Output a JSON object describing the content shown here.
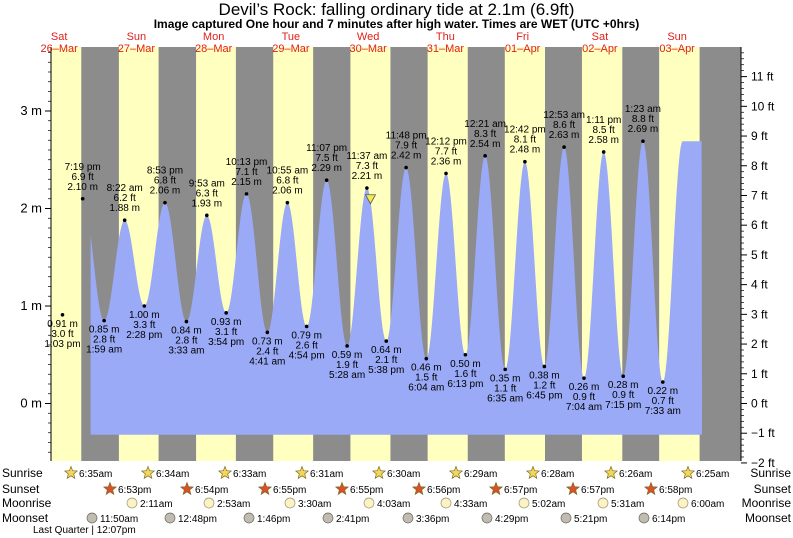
{
  "title": "Devil’s Rock: falling  ordinary tide at 2.1m (6.9ft)",
  "subtitle": "Image captured One hour and 7 minutes after high water. Times are WET (UTC +0hrs)",
  "colors": {
    "night": "#8c8c8c",
    "day": "#ffffc0",
    "water": "#9aaaf6",
    "day_label": "#e0201a",
    "sunrise_star": "#f3d75a",
    "sunset_star": "#d9502a",
    "moonrise": "#fbf3c4",
    "moonset": "#c0bcb2"
  },
  "chart_data": {
    "type": "area",
    "title": "Devil’s Rock: falling  ordinary tide at 2.1m (6.9ft)",
    "ylim_m": [
      -0.5,
      3.6
    ],
    "y_ticks_m": [
      {
        "v": 0,
        "label": "0 m"
      },
      {
        "v": 1,
        "label": "1 m"
      },
      {
        "v": 2,
        "label": "2 m"
      },
      {
        "v": 3,
        "label": "3 m"
      }
    ],
    "y_ticks_ft": [
      {
        "v": -2,
        "label": "−2 ft"
      },
      {
        "v": -1,
        "label": "−1 ft"
      },
      {
        "v": 0,
        "label": "0 ft"
      },
      {
        "v": 1,
        "label": "1 ft"
      },
      {
        "v": 2,
        "label": "2 ft"
      },
      {
        "v": 3,
        "label": "3 ft"
      },
      {
        "v": 4,
        "label": "4 ft"
      },
      {
        "v": 5,
        "label": "5 ft"
      },
      {
        "v": 6,
        "label": "6 ft"
      },
      {
        "v": 7,
        "label": "7 ft"
      },
      {
        "v": 8,
        "label": "8 ft"
      },
      {
        "v": 9,
        "label": "9 ft"
      },
      {
        "v": 10,
        "label": "10 ft"
      },
      {
        "v": 11,
        "label": "11 ft"
      }
    ],
    "days": [
      {
        "name": "Sat",
        "date": "26–Mar"
      },
      {
        "name": "Sun",
        "date": "27–Mar"
      },
      {
        "name": "Mon",
        "date": "28–Mar"
      },
      {
        "name": "Tue",
        "date": "29–Mar"
      },
      {
        "name": "Wed",
        "date": "30–Mar"
      },
      {
        "name": "Thu",
        "date": "31–Mar"
      },
      {
        "name": "Fri",
        "date": "01–Apr"
      },
      {
        "name": "Sat",
        "date": "02–Apr"
      },
      {
        "name": "Sun",
        "date": "03–Apr"
      }
    ],
    "daylight": [
      {
        "day": 0,
        "sunrise": "06:35",
        "sunset": "18:53"
      },
      {
        "day": 1,
        "sunrise": "06:34",
        "sunset": "18:54"
      },
      {
        "day": 2,
        "sunrise": "06:33",
        "sunset": "18:55"
      },
      {
        "day": 3,
        "sunrise": "06:31",
        "sunset": "18:55"
      },
      {
        "day": 4,
        "sunrise": "06:30",
        "sunset": "18:56"
      },
      {
        "day": 5,
        "sunrise": "06:29",
        "sunset": "18:57"
      },
      {
        "day": 6,
        "sunrise": "06:28",
        "sunset": "18:57"
      },
      {
        "day": 7,
        "sunrise": "06:26",
        "sunset": "18:58"
      },
      {
        "day": 8,
        "sunrise": "06:25",
        "sunset": "18:59"
      }
    ],
    "tides": [
      {
        "day": 0,
        "time": "13:03",
        "m": 0.91,
        "lines": [
          "0.91 m",
          "3.0 ft",
          "1:03 pm"
        ],
        "type": "low"
      },
      {
        "day": 0,
        "time": "19:19",
        "m": 2.1,
        "lines": [
          "7:19 pm",
          "6.9 ft",
          "2.10 m"
        ],
        "type": "high"
      },
      {
        "day": 1,
        "time": "01:59",
        "m": 0.85,
        "lines": [
          "0.85 m",
          "2.8 ft",
          "1:59 am"
        ],
        "type": "low"
      },
      {
        "day": 1,
        "time": "08:22",
        "m": 1.88,
        "lines": [
          "8:22 am",
          "6.2 ft",
          "1.88 m"
        ],
        "type": "high"
      },
      {
        "day": 1,
        "time": "14:28",
        "m": 1.0,
        "lines": [
          "1.00 m",
          "3.3 ft",
          "2:28 pm"
        ],
        "type": "low"
      },
      {
        "day": 1,
        "time": "20:53",
        "m": 2.06,
        "lines": [
          "8:53 pm",
          "6.8 ft",
          "2.06 m"
        ],
        "type": "high"
      },
      {
        "day": 2,
        "time": "03:33",
        "m": 0.84,
        "lines": [
          "0.84 m",
          "2.8 ft",
          "3:33 am"
        ],
        "type": "low"
      },
      {
        "day": 2,
        "time": "09:53",
        "m": 1.93,
        "lines": [
          "9:53 am",
          "6.3 ft",
          "1.93 m"
        ],
        "type": "high"
      },
      {
        "day": 2,
        "time": "15:54",
        "m": 0.93,
        "lines": [
          "0.93 m",
          "3.1 ft",
          "3:54 pm"
        ],
        "type": "low"
      },
      {
        "day": 2,
        "time": "22:13",
        "m": 2.15,
        "lines": [
          "10:13 pm",
          "7.1 ft",
          "2.15 m"
        ],
        "type": "high"
      },
      {
        "day": 3,
        "time": "04:41",
        "m": 0.73,
        "lines": [
          "0.73 m",
          "2.4 ft",
          "4:41 am"
        ],
        "type": "low"
      },
      {
        "day": 3,
        "time": "10:55",
        "m": 2.06,
        "lines": [
          "10:55 am",
          "6.8 ft",
          "2.06 m"
        ],
        "type": "high"
      },
      {
        "day": 3,
        "time": "16:54",
        "m": 0.79,
        "lines": [
          "0.79 m",
          "2.6 ft",
          "4:54 pm"
        ],
        "type": "low"
      },
      {
        "day": 3,
        "time": "23:07",
        "m": 2.29,
        "lines": [
          "11:07 pm",
          "7.5 ft",
          "2.29 m"
        ],
        "type": "high"
      },
      {
        "day": 4,
        "time": "05:28",
        "m": 0.59,
        "lines": [
          "0.59 m",
          "1.9 ft",
          "5:28 am"
        ],
        "type": "low"
      },
      {
        "day": 4,
        "time": "11:37",
        "m": 2.21,
        "lines": [
          "11:37 am",
          "7.3 ft",
          "2.21 m"
        ],
        "type": "high"
      },
      {
        "day": 4,
        "time": "17:38",
        "m": 0.64,
        "lines": [
          "0.64 m",
          "2.1 ft",
          "5:38 pm"
        ],
        "type": "low"
      },
      {
        "day": 4,
        "time": "23:48",
        "m": 2.42,
        "lines": [
          "11:48 pm",
          "7.9 ft",
          "2.42 m"
        ],
        "type": "high"
      },
      {
        "day": 5,
        "time": "06:04",
        "m": 0.46,
        "lines": [
          "0.46 m",
          "1.5 ft",
          "6:04 am"
        ],
        "type": "low"
      },
      {
        "day": 5,
        "time": "12:12",
        "m": 2.36,
        "lines": [
          "12:12 pm",
          "7.7 ft",
          "2.36 m"
        ],
        "type": "high"
      },
      {
        "day": 5,
        "time": "18:13",
        "m": 0.5,
        "lines": [
          "0.50 m",
          "1.6 ft",
          "6:13 pm"
        ],
        "type": "low"
      },
      {
        "day": 6,
        "time": "00:21",
        "m": 2.54,
        "lines": [
          "12:21 am",
          "8.3 ft",
          "2.54 m"
        ],
        "type": "high"
      },
      {
        "day": 6,
        "time": "06:35",
        "m": 0.35,
        "lines": [
          "0.35 m",
          "1.1 ft",
          "6:35 am"
        ],
        "type": "low"
      },
      {
        "day": 6,
        "time": "12:42",
        "m": 2.48,
        "lines": [
          "12:42 pm",
          "8.1 ft",
          "2.48 m"
        ],
        "type": "high"
      },
      {
        "day": 6,
        "time": "18:45",
        "m": 0.38,
        "lines": [
          "0.38 m",
          "1.2 ft",
          "6:45 pm"
        ],
        "type": "low"
      },
      {
        "day": 7,
        "time": "00:53",
        "m": 2.63,
        "lines": [
          "12:53 am",
          "8.6 ft",
          "2.63 m"
        ],
        "type": "high"
      },
      {
        "day": 7,
        "time": "07:04",
        "m": 0.26,
        "lines": [
          "0.26 m",
          "0.9 ft",
          "7:04 am"
        ],
        "type": "low"
      },
      {
        "day": 7,
        "time": "13:11",
        "m": 2.58,
        "lines": [
          "1:11 pm",
          "8.5 ft",
          "2.58 m"
        ],
        "type": "high"
      },
      {
        "day": 7,
        "time": "19:15",
        "m": 0.28,
        "lines": [
          "0.28 m",
          "0.9 ft",
          "7:15 pm"
        ],
        "type": "low"
      },
      {
        "day": 8,
        "time": "01:23",
        "m": 2.69,
        "lines": [
          "1:23 am",
          "8.8 ft",
          "2.69 m"
        ],
        "type": "high"
      },
      {
        "day": 8,
        "time": "07:33",
        "m": 0.22,
        "lines": [
          "0.22 m",
          "0.7 ft",
          "7:33 am"
        ],
        "type": "low"
      }
    ],
    "current": {
      "day": 4,
      "time": "12:44",
      "m": 2.1
    },
    "astro": {
      "row_labels": {
        "sunrise": "Sunrise",
        "sunset": "Sunset",
        "moonrise": "Moonrise",
        "moonset": "Moonset"
      },
      "sunrise": [
        {
          "day": 0,
          "label": "6:35am"
        },
        {
          "day": 1,
          "label": "6:34am"
        },
        {
          "day": 2,
          "label": "6:33am"
        },
        {
          "day": 3,
          "label": "6:31am"
        },
        {
          "day": 4,
          "label": "6:30am"
        },
        {
          "day": 5,
          "label": "6:29am"
        },
        {
          "day": 6,
          "label": "6:28am"
        },
        {
          "day": 7,
          "label": "6:26am"
        },
        {
          "day": 8,
          "label": "6:25am"
        }
      ],
      "sunset": [
        {
          "day": 0,
          "label": "6:53pm"
        },
        {
          "day": 1,
          "label": "6:54pm"
        },
        {
          "day": 2,
          "label": "6:55pm"
        },
        {
          "day": 3,
          "label": "6:55pm"
        },
        {
          "day": 4,
          "label": "6:56pm"
        },
        {
          "day": 5,
          "label": "6:57pm"
        },
        {
          "day": 6,
          "label": "6:57pm"
        },
        {
          "day": 7,
          "label": "6:58pm"
        }
      ],
      "moonrise": [
        {
          "day": 1,
          "label": "2:11am"
        },
        {
          "day": 2,
          "label": "2:53am"
        },
        {
          "day": 3,
          "label": "3:30am"
        },
        {
          "day": 4,
          "label": "4:03am"
        },
        {
          "day": 5,
          "label": "4:33am"
        },
        {
          "day": 6,
          "label": "5:02am"
        },
        {
          "day": 7,
          "label": "5:31am"
        },
        {
          "day": 8,
          "label": "6:00am"
        }
      ],
      "moonset": [
        {
          "day": 0,
          "label": "11:50am"
        },
        {
          "day": 1,
          "label": "12:48pm"
        },
        {
          "day": 2,
          "label": "1:46pm"
        },
        {
          "day": 3,
          "label": "2:41pm"
        },
        {
          "day": 4,
          "label": "3:36pm"
        },
        {
          "day": 5,
          "label": "4:29pm"
        },
        {
          "day": 6,
          "label": "5:21pm"
        },
        {
          "day": 7,
          "label": "6:14pm"
        }
      ]
    },
    "footnote": "Last Quarter | 12:07pm"
  }
}
